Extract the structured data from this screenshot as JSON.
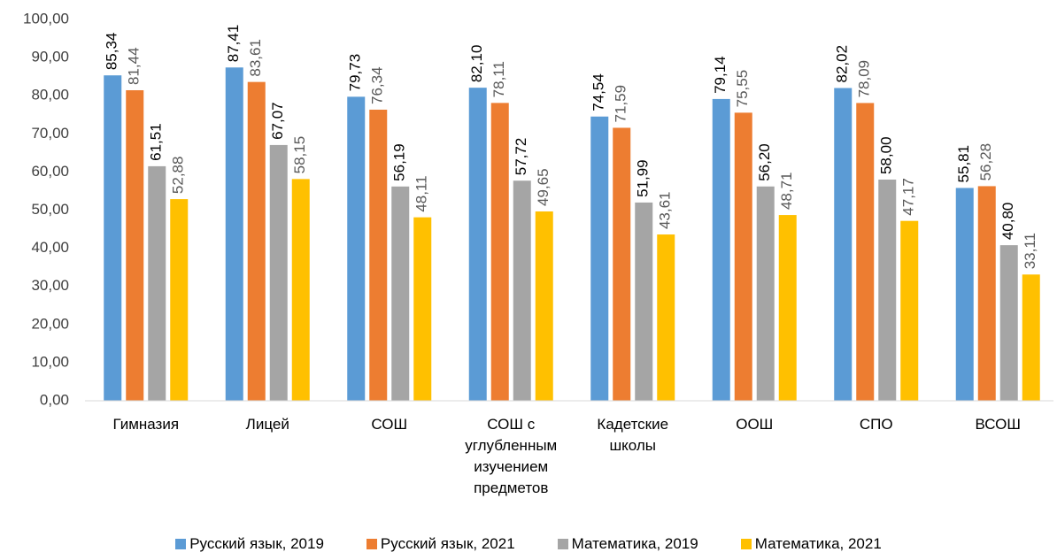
{
  "chart_data": {
    "type": "bar",
    "categories": [
      "Гимназия",
      "Лицей",
      "СОШ",
      "СОШ с углубленным изучением предметов",
      "Кадетские школы",
      "ООШ",
      "СПО",
      "ВСОШ"
    ],
    "series": [
      {
        "name": "Русский язык, 2019",
        "color": "#5b9bd5",
        "values": [
          85.34,
          87.41,
          79.73,
          82.1,
          74.54,
          79.14,
          82.02,
          55.81
        ],
        "value_labels": [
          "85,34",
          "87,41",
          "79,73",
          "82,10",
          "74,54",
          "79,14",
          "82,02",
          "55,81"
        ]
      },
      {
        "name": "Русский язык, 2021",
        "color": "#ed7d31",
        "values": [
          81.44,
          83.61,
          76.34,
          78.11,
          71.59,
          75.55,
          78.09,
          56.28
        ],
        "value_labels": [
          "81,44",
          "83,61",
          "76,34",
          "78,11",
          "71,59",
          "75,55",
          "78,09",
          "56,28"
        ]
      },
      {
        "name": "Математика, 2019",
        "color": "#a5a5a5",
        "values": [
          61.51,
          67.07,
          56.19,
          57.72,
          51.99,
          56.2,
          58.0,
          40.8
        ],
        "value_labels": [
          "61,51",
          "67,07",
          "56,19",
          "57,72",
          "51,99",
          "56,20",
          "58,00",
          "40,80"
        ]
      },
      {
        "name": "Математика, 2021",
        "color": "#ffc000",
        "values": [
          52.88,
          58.15,
          48.11,
          49.65,
          43.61,
          48.71,
          47.17,
          33.11
        ],
        "value_labels": [
          "52,88",
          "58,15",
          "48,11",
          "49,65",
          "43,61",
          "48,71",
          "47,17",
          "33,11"
        ]
      }
    ],
    "ylim": [
      0,
      100
    ],
    "yticks": [
      {
        "value": 0,
        "label": "0,00"
      },
      {
        "value": 10,
        "label": "10,00"
      },
      {
        "value": 20,
        "label": "20,00"
      },
      {
        "value": 30,
        "label": "30,00"
      },
      {
        "value": 40,
        "label": "40,00"
      },
      {
        "value": 50,
        "label": "50,00"
      },
      {
        "value": 60,
        "label": "60,00"
      },
      {
        "value": 70,
        "label": "70,00"
      },
      {
        "value": 80,
        "label": "80,00"
      },
      {
        "value": 90,
        "label": "90,00"
      },
      {
        "value": 100,
        "label": "100,00"
      }
    ],
    "grid": false,
    "legend": "bottom"
  }
}
